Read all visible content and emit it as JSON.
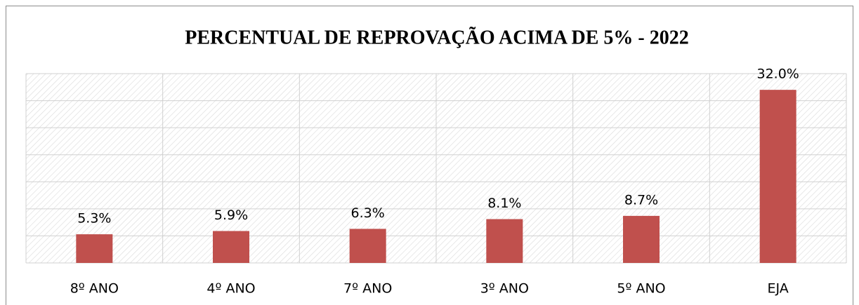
{
  "chart_data": {
    "type": "bar",
    "title": "PERCENTUAL DE REPROVAÇÃO ACIMA DE 5% - 2022",
    "categories": [
      "8º ANO",
      "4º ANO",
      "7º ANO",
      "3º ANO",
      "5º ANO",
      "EJA"
    ],
    "values": [
      5.3,
      5.9,
      6.3,
      8.1,
      8.7,
      32.0
    ],
    "value_labels": [
      "5.3%",
      "5.9%",
      "6.3%",
      "8.1%",
      "8.7%",
      "32.0%"
    ],
    "color": "#c0504d",
    "ylim": [
      0,
      35
    ],
    "yticks": [
      0,
      5,
      10,
      15,
      20,
      25,
      30,
      35
    ],
    "grid": true
  }
}
